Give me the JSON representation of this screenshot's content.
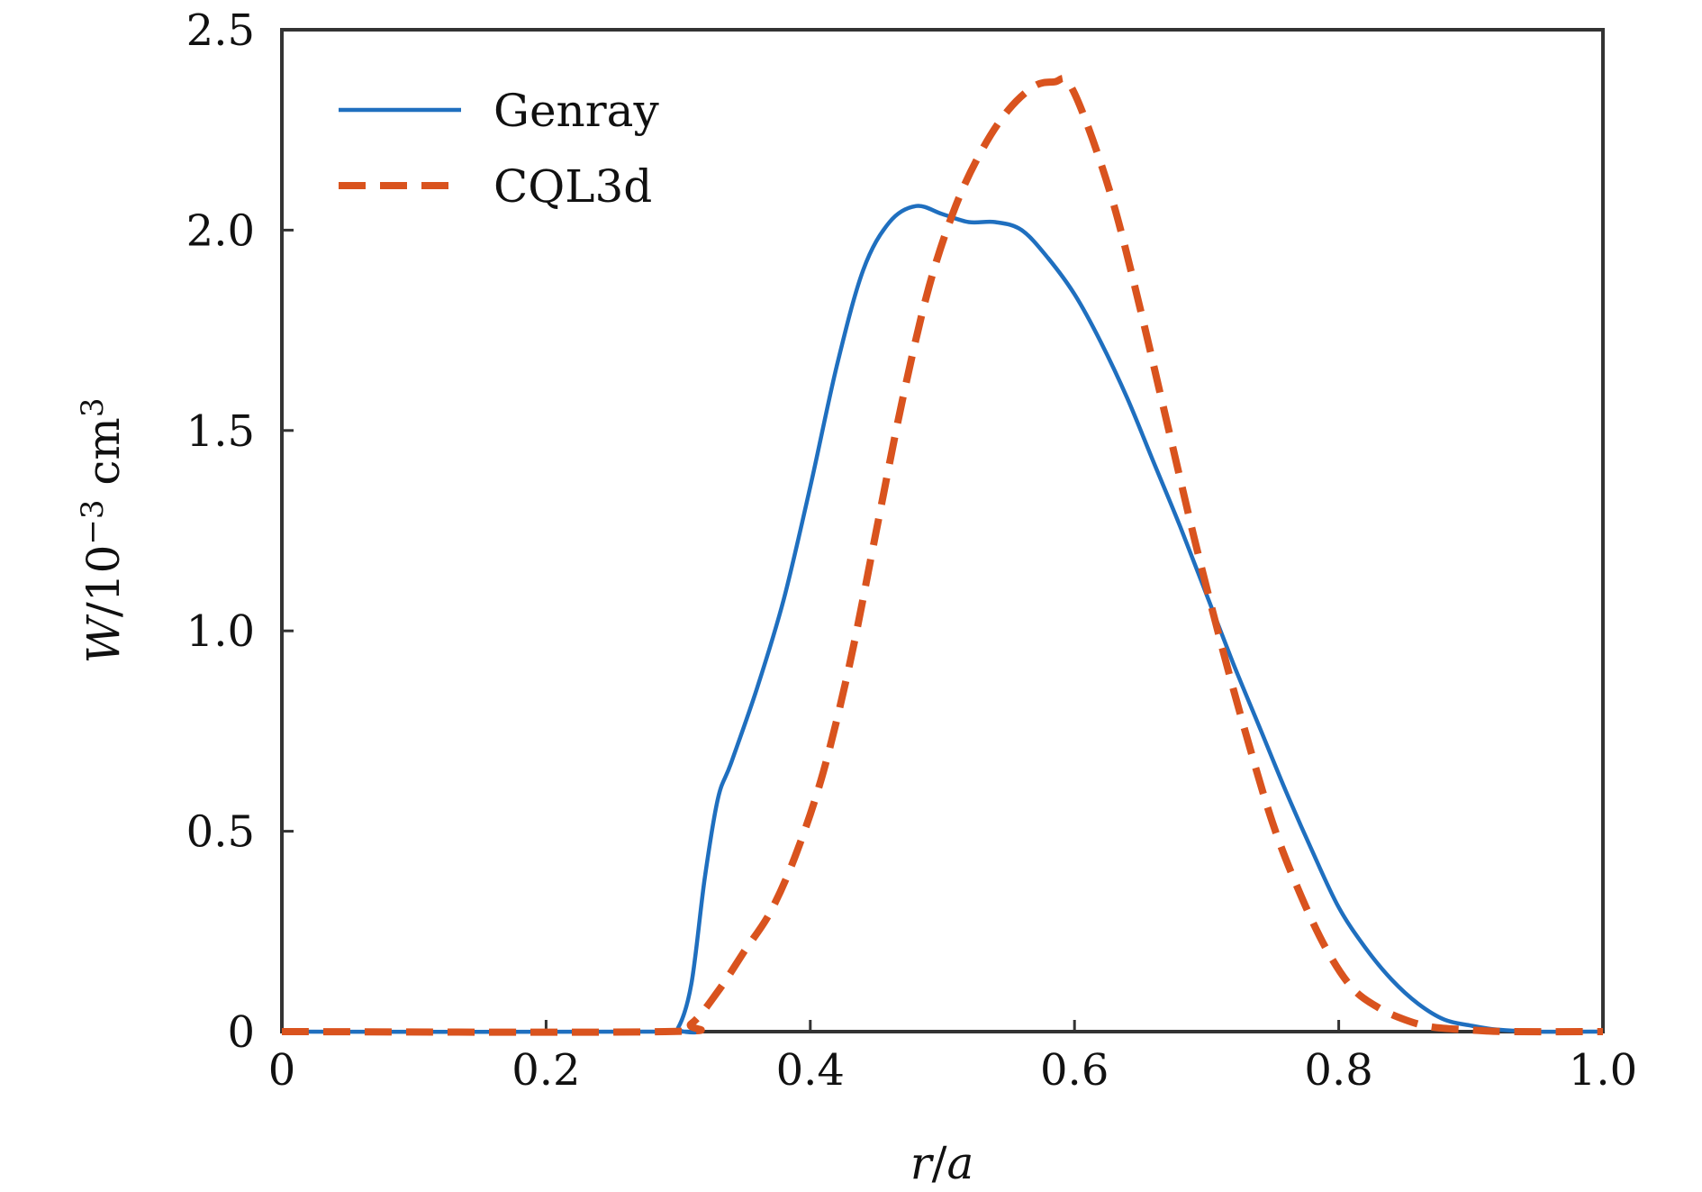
{
  "chart_data": {
    "type": "line",
    "xlabel": {
      "r": "r",
      "slash": "/",
      "a": "a"
    },
    "ylabel": {
      "W": "W",
      "slash": "/",
      "base": "10",
      "exponent": "−3",
      "unit": " cm",
      "unit_exponent": "3"
    },
    "xlim": [
      0,
      1.0
    ],
    "ylim": [
      0,
      2.5
    ],
    "grid": false,
    "legend_position": "top-left",
    "x_ticks": [
      {
        "value": 0,
        "label": "0"
      },
      {
        "value": 0.2,
        "label": "0.2"
      },
      {
        "value": 0.4,
        "label": "0.4"
      },
      {
        "value": 0.6,
        "label": "0.6"
      },
      {
        "value": 0.8,
        "label": "0.8"
      },
      {
        "value": 1.0,
        "label": "1.0"
      }
    ],
    "y_ticks": [
      {
        "value": 0,
        "label": "0"
      },
      {
        "value": 0.5,
        "label": "0.5"
      },
      {
        "value": 1.0,
        "label": "1.0"
      },
      {
        "value": 1.5,
        "label": "1.5"
      },
      {
        "value": 2.0,
        "label": "2.0"
      },
      {
        "value": 2.5,
        "label": "2.5"
      }
    ],
    "series": [
      {
        "name": "Genray",
        "color": "#1f6fbf",
        "style": "solid",
        "points": [
          [
            0,
            0
          ],
          [
            0.29,
            0
          ],
          [
            0.3,
            0.01
          ],
          [
            0.31,
            0.12
          ],
          [
            0.32,
            0.38
          ],
          [
            0.33,
            0.58
          ],
          [
            0.34,
            0.67
          ],
          [
            0.36,
            0.86
          ],
          [
            0.38,
            1.08
          ],
          [
            0.4,
            1.36
          ],
          [
            0.42,
            1.66
          ],
          [
            0.44,
            1.9
          ],
          [
            0.46,
            2.02
          ],
          [
            0.48,
            2.06
          ],
          [
            0.5,
            2.04
          ],
          [
            0.52,
            2.02
          ],
          [
            0.54,
            2.02
          ],
          [
            0.56,
            2.0
          ],
          [
            0.58,
            1.93
          ],
          [
            0.6,
            1.84
          ],
          [
            0.62,
            1.72
          ],
          [
            0.64,
            1.58
          ],
          [
            0.66,
            1.42
          ],
          [
            0.68,
            1.26
          ],
          [
            0.7,
            1.09
          ],
          [
            0.72,
            0.92
          ],
          [
            0.74,
            0.76
          ],
          [
            0.76,
            0.6
          ],
          [
            0.78,
            0.45
          ],
          [
            0.8,
            0.31
          ],
          [
            0.82,
            0.21
          ],
          [
            0.84,
            0.13
          ],
          [
            0.86,
            0.07
          ],
          [
            0.88,
            0.03
          ],
          [
            0.9,
            0.015
          ],
          [
            0.92,
            0.005
          ],
          [
            0.95,
            0
          ],
          [
            1.0,
            0
          ]
        ]
      },
      {
        "name": "CQL3d",
        "color": "#d9531e",
        "style": "dashed",
        "points": [
          [
            0,
            0
          ],
          [
            0.29,
            0
          ],
          [
            0.31,
            0.02
          ],
          [
            0.33,
            0.1
          ],
          [
            0.35,
            0.2
          ],
          [
            0.37,
            0.3
          ],
          [
            0.39,
            0.45
          ],
          [
            0.41,
            0.65
          ],
          [
            0.43,
            0.92
          ],
          [
            0.45,
            1.25
          ],
          [
            0.47,
            1.58
          ],
          [
            0.49,
            1.86
          ],
          [
            0.51,
            2.06
          ],
          [
            0.53,
            2.2
          ],
          [
            0.55,
            2.3
          ],
          [
            0.57,
            2.36
          ],
          [
            0.585,
            2.37
          ],
          [
            0.595,
            2.37
          ],
          [
            0.61,
            2.26
          ],
          [
            0.63,
            2.06
          ],
          [
            0.65,
            1.8
          ],
          [
            0.67,
            1.52
          ],
          [
            0.69,
            1.24
          ],
          [
            0.71,
            0.98
          ],
          [
            0.73,
            0.74
          ],
          [
            0.75,
            0.52
          ],
          [
            0.77,
            0.35
          ],
          [
            0.79,
            0.21
          ],
          [
            0.81,
            0.11
          ],
          [
            0.83,
            0.06
          ],
          [
            0.85,
            0.03
          ],
          [
            0.87,
            0.012
          ],
          [
            0.9,
            0.004
          ],
          [
            0.93,
            0
          ],
          [
            1.0,
            0
          ]
        ]
      }
    ]
  }
}
